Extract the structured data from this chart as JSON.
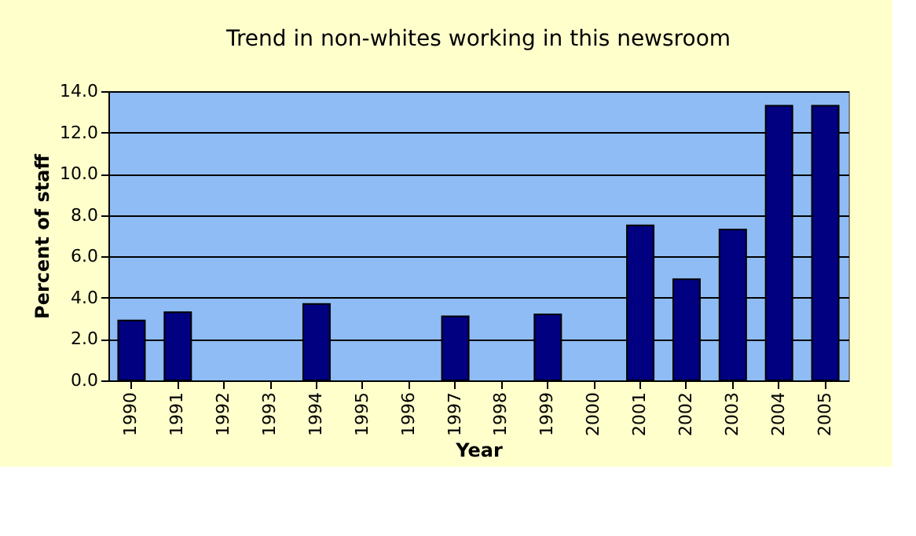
{
  "chart_data": {
    "type": "bar",
    "title": "Trend in non-whites working in this newsroom",
    "xlabel": "Year",
    "ylabel": "Percent of staff",
    "categories": [
      "1990",
      "1991",
      "1992",
      "1993",
      "1994",
      "1995",
      "1996",
      "1997",
      "1998",
      "1999",
      "2000",
      "2001",
      "2002",
      "2003",
      "2004",
      "2005"
    ],
    "values": [
      2.9,
      3.3,
      null,
      null,
      3.7,
      null,
      null,
      3.1,
      null,
      3.2,
      null,
      7.5,
      4.9,
      7.3,
      13.3,
      13.3
    ],
    "color": "#000080",
    "ylim": [
      0,
      14
    ],
    "yticks": [
      {
        "value": 0,
        "label": "0.0"
      },
      {
        "value": 2,
        "label": "2.0"
      },
      {
        "value": 4,
        "label": "4.0"
      },
      {
        "value": 6,
        "label": "6.0"
      },
      {
        "value": 8,
        "label": "8.0"
      },
      {
        "value": 10,
        "label": "10.0"
      },
      {
        "value": 12,
        "label": "12.0"
      },
      {
        "value": 14,
        "label": "14.0"
      }
    ],
    "grid": "y"
  }
}
